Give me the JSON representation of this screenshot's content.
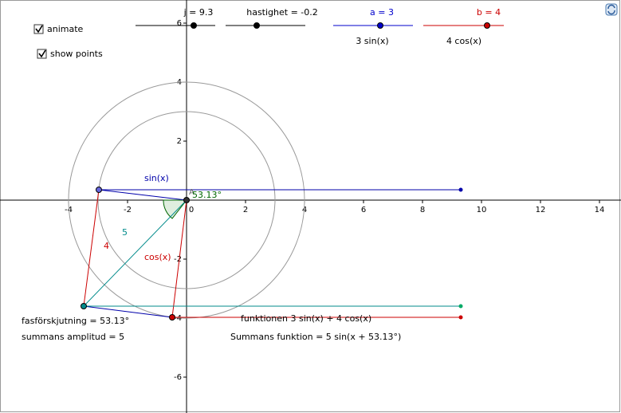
{
  "sliders": [
    {
      "label": "j = 9.3",
      "color": "#000000"
    },
    {
      "label": "hastighet = -0.2",
      "color": "#000000"
    },
    {
      "label": "a = 3",
      "color": "#0000cc",
      "caption": "3 sin(x)"
    },
    {
      "label": "b = 4",
      "color": "#cc0000",
      "caption": "4 cos(x)"
    }
  ],
  "checkboxes": [
    {
      "label": "animate",
      "checked": true
    },
    {
      "label": "show points",
      "checked": true
    }
  ],
  "axes": {
    "xticks": [
      -4,
      -2,
      0,
      2,
      4,
      6,
      8,
      10,
      12,
      14
    ],
    "yticks": [
      -6,
      -4,
      -2,
      2,
      4,
      6
    ]
  },
  "labels": {
    "sin": "sin(x)",
    "cos": "cos(x)",
    "hyp": "5",
    "side": "4",
    "point": "A",
    "angle": "53.13°",
    "phase": "fasförskjutning = 53.13°",
    "amplitude": "summans amplitud = 5",
    "function": "funktionen 3 sin(x) + 4 cos(x)",
    "sum_function": "Summans funktion = 5 sin(x + 53.13°)"
  }
}
